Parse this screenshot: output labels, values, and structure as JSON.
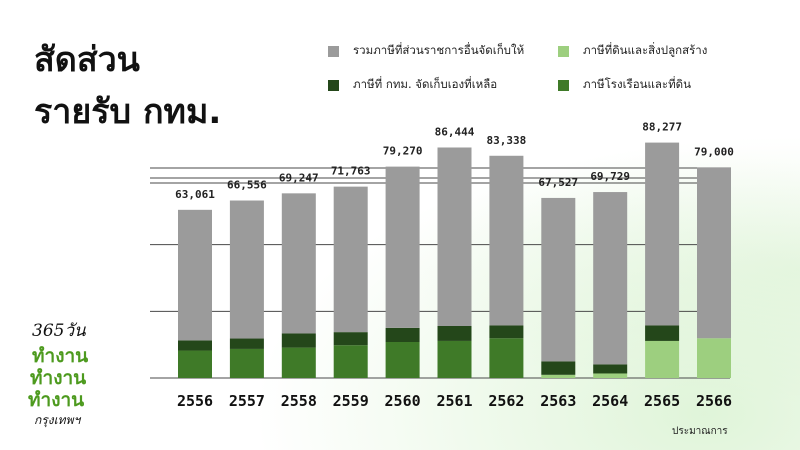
{
  "title_lines": [
    "สัดส่วน",
    "รายรับ กทม."
  ],
  "footnote": "ประมาณการ",
  "logo": {
    "text": "365วัน ทำงาน ทำงาน ทำงาน กรุงเทพฯ"
  },
  "colors": {
    "other_agencies": "#9b9b9b",
    "bma_remaining": "#24471a",
    "land_building_tax": "#3f7a28",
    "land_construction_tax": "#9dcf7f",
    "gridline": "#4a4a4a",
    "logo_green": "#4d9a1e"
  },
  "chart_data": {
    "type": "bar",
    "stacked": true,
    "categories": [
      "2556",
      "2557",
      "2558",
      "2559",
      "2560",
      "2561",
      "2562",
      "2563",
      "2564",
      "2565",
      "2566"
    ],
    "totals": [
      "63,061",
      "66,556",
      "69,247",
      "71,763",
      "79,270",
      "86,444",
      "83,338",
      "67,527",
      "69,729",
      "88,277",
      "79,000"
    ],
    "total_values": [
      63061,
      66556,
      69247,
      71763,
      79270,
      86444,
      83338,
      67527,
      69729,
      88277,
      79000
    ],
    "series": [
      {
        "key": "land_building_tax",
        "name": "ภาษีโรงเรือนและที่ดิน",
        "color": "#3f7a28",
        "values": [
          10300,
          10900,
          11400,
          12300,
          13500,
          13900,
          14900,
          0,
          0,
          0,
          0
        ]
      },
      {
        "key": "land_construction_tax",
        "name": "ภาษีที่ดินและสิ่งปลูกสร้าง",
        "color": "#9dcf7f",
        "values": [
          0,
          0,
          0,
          0,
          0,
          0,
          0,
          1200,
          1700,
          13900,
          14900
        ]
      },
      {
        "key": "bma_remaining",
        "name": "ภาษีที่ กทม. จัดเก็บเองที่เหลือ",
        "color": "#24471a",
        "values": [
          3800,
          3900,
          5300,
          4900,
          5300,
          5600,
          4800,
          5000,
          3400,
          5800,
          0
        ]
      },
      {
        "key": "other_agencies",
        "name": "รวมภาษีที่ส่วนราชการอื่นจัดเก็บให้",
        "color": "#9b9b9b",
        "values": [
          48961,
          51756,
          52547,
          54563,
          60470,
          66944,
          63638,
          61327,
          64629,
          68577,
          64100
        ]
      }
    ],
    "ylim": [
      0,
      90000
    ],
    "legend_order": [
      "other_agencies",
      "land_construction_tax",
      "bma_remaining",
      "land_building_tax"
    ],
    "legend_position": "top-right",
    "gridlines": [
      0,
      25000,
      50000,
      75000
    ],
    "grid": true
  }
}
